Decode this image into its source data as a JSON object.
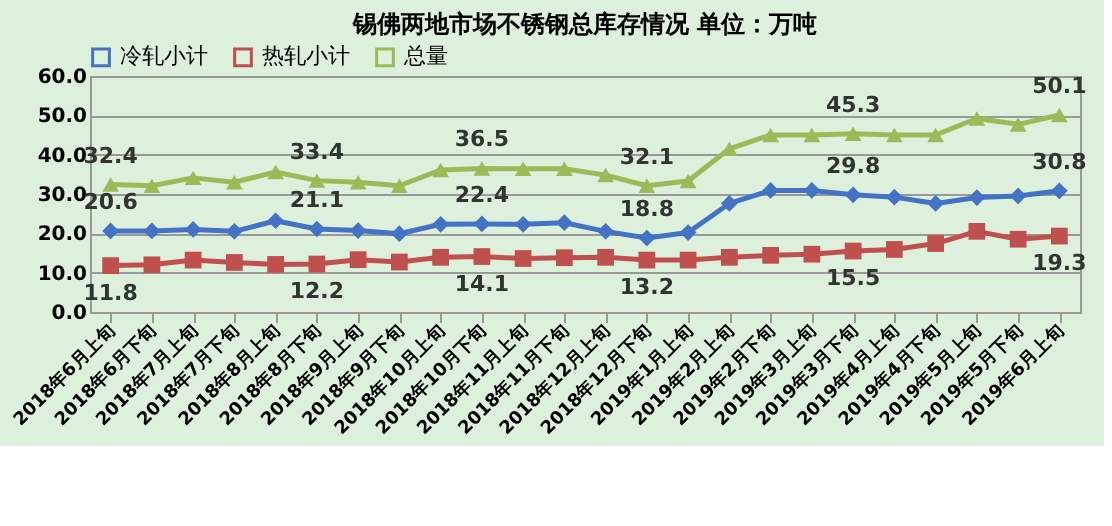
{
  "chart_data": {
    "type": "line",
    "title": "锡佛两地市场不锈钢总库存情况   单位：万吨",
    "categories": [
      "2018年6月上旬",
      "2018年6月下旬",
      "2018年7月上旬",
      "2018年7月下旬",
      "2018年8月上旬",
      "2018年8月下旬",
      "2018年9月上旬",
      "2018年9月下旬",
      "2018年10月上旬",
      "2018年10月下旬",
      "2018年11月上旬",
      "2018年11月下旬",
      "2018年12月上旬",
      "2018年12月下旬",
      "2019年1月上旬",
      "2019年2月上旬",
      "2019年2月下旬",
      "2019年3月上旬",
      "2019年3月下旬",
      "2019年4月上旬",
      "2019年4月下旬",
      "2019年5月上旬",
      "2019年5月下旬",
      "2019年6月上旬"
    ],
    "series": [
      {
        "name": "冷轧小计",
        "color": "#4472c4",
        "marker": "diamond",
        "values": [
          20.6,
          20.6,
          21.0,
          20.5,
          23.2,
          21.1,
          20.7,
          19.9,
          22.3,
          22.4,
          22.3,
          22.7,
          20.5,
          18.8,
          20.2,
          27.6,
          30.9,
          30.9,
          29.8,
          29.2,
          27.6,
          29.1,
          29.5,
          30.8
        ],
        "value_labels": [
          "20.6",
          null,
          null,
          null,
          null,
          "21.1",
          null,
          null,
          null,
          "22.4",
          null,
          null,
          null,
          "18.8",
          null,
          null,
          null,
          null,
          "29.8",
          null,
          null,
          null,
          null,
          "30.8"
        ]
      },
      {
        "name": "热轧小计",
        "color": "#c0504d",
        "marker": "square",
        "values": [
          11.8,
          12.0,
          13.2,
          12.6,
          12.1,
          12.2,
          13.3,
          12.7,
          13.9,
          14.1,
          13.6,
          13.8,
          13.9,
          13.2,
          13.2,
          13.9,
          14.4,
          14.7,
          15.5,
          15.9,
          17.4,
          20.5,
          18.5,
          19.3
        ],
        "value_labels": [
          "11.8",
          null,
          null,
          null,
          null,
          "12.2",
          null,
          null,
          null,
          "14.1",
          null,
          null,
          null,
          "13.2",
          null,
          null,
          null,
          null,
          "15.5",
          null,
          null,
          null,
          null,
          "19.3"
        ]
      },
      {
        "name": "总量",
        "color": "#9bbb59",
        "marker": "triangle",
        "values": [
          32.4,
          32.1,
          34.1,
          33.0,
          35.6,
          33.4,
          33.0,
          32.1,
          36.1,
          36.5,
          36.4,
          36.4,
          34.8,
          32.1,
          33.3,
          41.5,
          45.0,
          45.0,
          45.3,
          45.0,
          45.0,
          49.2,
          47.7,
          50.1
        ],
        "value_labels": [
          "32.4",
          null,
          null,
          null,
          null,
          "33.4",
          null,
          null,
          null,
          "36.5",
          null,
          null,
          null,
          "32.1",
          null,
          null,
          null,
          null,
          "45.3",
          null,
          null,
          null,
          null,
          "50.1"
        ]
      }
    ],
    "ylim": [
      0,
      60
    ],
    "yticks": [
      {
        "value": 0,
        "label": "0.0"
      },
      {
        "value": 10,
        "label": "10.0"
      },
      {
        "value": 20,
        "label": "20.0"
      },
      {
        "value": 30,
        "label": "30.0"
      },
      {
        "value": 40,
        "label": "40.0"
      },
      {
        "value": 50,
        "label": "50.0"
      },
      {
        "value": 60,
        "label": "60.0"
      }
    ],
    "grid": "y",
    "legend": "top",
    "line_style": "solid"
  }
}
